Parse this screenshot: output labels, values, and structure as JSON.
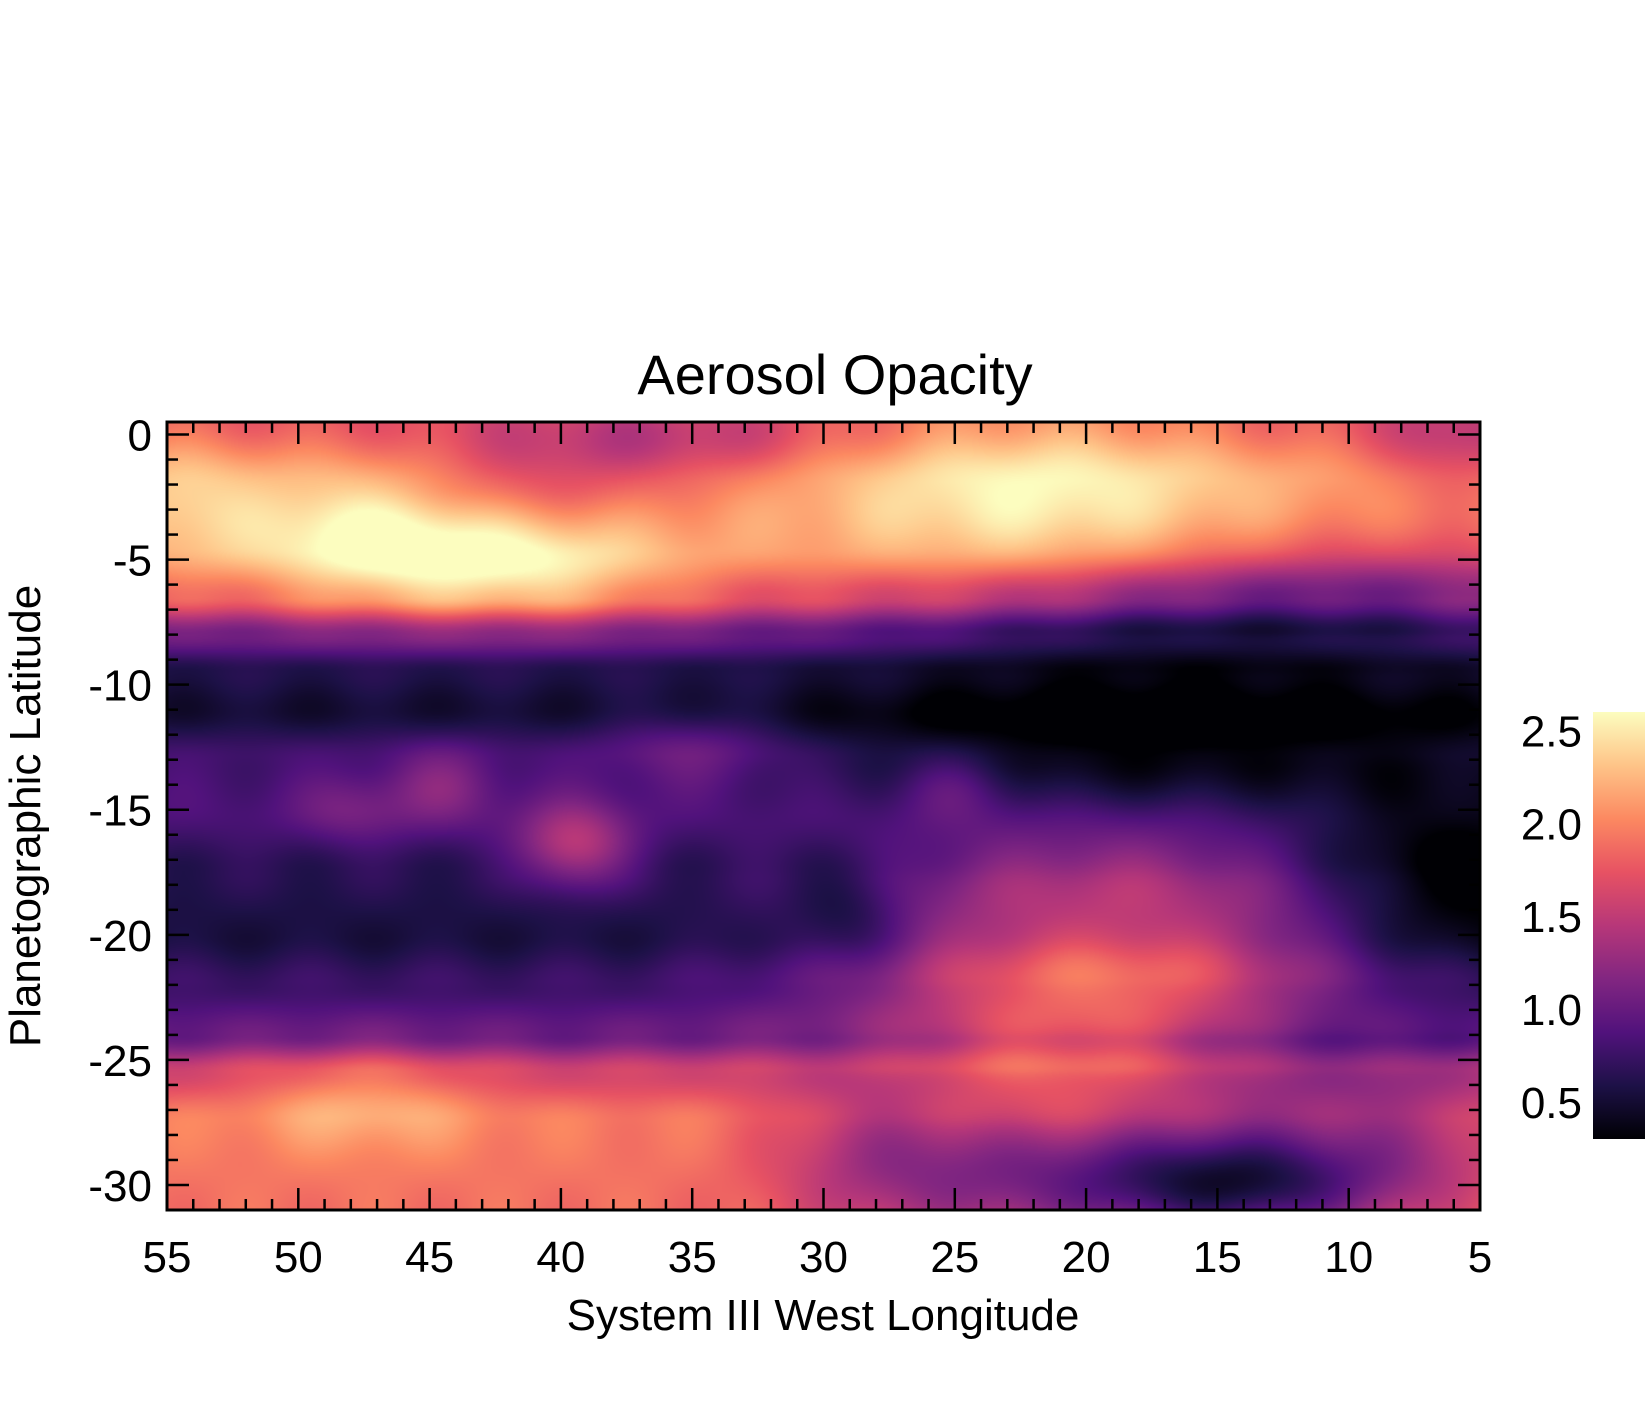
{
  "chart_data": {
    "type": "heatmap",
    "title": "Aerosol Opacity",
    "xlabel": "System III West Longitude",
    "ylabel": "Planetographic Latitude",
    "xlim": [
      55,
      5
    ],
    "ylim": [
      -31,
      0.5
    ],
    "x_ticks": [
      55,
      50,
      45,
      40,
      35,
      30,
      25,
      20,
      15,
      10,
      5
    ],
    "x_tick_labels": [
      "55",
      "50",
      "45",
      "40",
      "35",
      "30",
      "25",
      "20",
      "15",
      "10",
      "5"
    ],
    "y_ticks": [
      0,
      -5,
      -10,
      -15,
      -20,
      -25,
      -30
    ],
    "y_tick_labels": [
      "0",
      "-5",
      "-10",
      "-15",
      "-20",
      "-25",
      "-30"
    ],
    "colorbar": {
      "range": [
        0.3,
        2.6
      ],
      "ticks": [
        2.5,
        2.0,
        1.5,
        1.0,
        0.5
      ],
      "tick_labels": [
        "2.5",
        "2.0",
        "1.5",
        "1.0",
        "0.5"
      ],
      "colormap": "magma"
    },
    "field": {
      "baseline_rows": [
        {
          "lat": 0.5,
          "value": 1.75
        },
        {
          "lat": -2,
          "value": 2.05
        },
        {
          "lat": -4.5,
          "value": 2.05
        },
        {
          "lat": -6.5,
          "value": 1.75
        },
        {
          "lat": -8,
          "value": 1.05
        },
        {
          "lat": -9.5,
          "value": 0.6
        },
        {
          "lat": -11,
          "value": 0.5
        },
        {
          "lat": -13,
          "value": 0.8
        },
        {
          "lat": -15,
          "value": 0.85
        },
        {
          "lat": -17.5,
          "value": 0.65
        },
        {
          "lat": -20,
          "value": 0.55
        },
        {
          "lat": -22,
          "value": 0.75
        },
        {
          "lat": -24,
          "value": 1.0
        },
        {
          "lat": -25.5,
          "value": 1.6
        },
        {
          "lat": -27.5,
          "value": 1.95
        },
        {
          "lat": -31,
          "value": 1.9
        }
      ],
      "features": [
        {
          "lon": 47.5,
          "lat": -4,
          "dlon": 3.5,
          "dlat": 2,
          "amp": 0.6
        },
        {
          "lon": 41.5,
          "lat": -5.5,
          "dlon": 4,
          "dlat": 1.5,
          "amp": 0.6
        },
        {
          "lon": 22,
          "lat": -2,
          "dlon": 6,
          "dlat": 2.8,
          "amp": 0.55
        },
        {
          "lon": 54.5,
          "lat": -2.5,
          "dlon": 2,
          "dlat": 2,
          "amp": 0.3
        },
        {
          "lon": 42,
          "lat": -2,
          "dlon": 4,
          "dlat": 1.2,
          "amp": -0.3
        },
        {
          "lon": 36,
          "lat": -0.5,
          "dlon": 5,
          "dlat": 1.2,
          "amp": -0.35
        },
        {
          "lon": 6,
          "lat": -0.5,
          "dlon": 2,
          "dlat": 1.5,
          "amp": -0.35
        },
        {
          "lon": 8,
          "lat": -6,
          "dlon": 7,
          "dlat": 1.5,
          "amp": -0.45
        },
        {
          "lon": 17,
          "lat": -7,
          "dlon": 8,
          "dlat": 1.5,
          "amp": -0.5
        },
        {
          "lon": 39.5,
          "lat": -16.5,
          "dlon": 1.5,
          "dlat": 1.2,
          "amp": 0.75
        },
        {
          "lon": 44.5,
          "lat": -14,
          "dlon": 1.5,
          "dlat": 1.2,
          "amp": 0.35
        },
        {
          "lon": 48,
          "lat": -15,
          "dlon": 1.5,
          "dlat": 1,
          "amp": 0.25
        },
        {
          "lon": 35,
          "lat": -12.5,
          "dlon": 2.5,
          "dlat": 1.2,
          "amp": 0.3
        },
        {
          "lon": 25,
          "lat": -14,
          "dlon": 1.5,
          "dlat": 1,
          "amp": 0.3
        },
        {
          "lon": 18,
          "lat": -13,
          "dlon": 8,
          "dlat": 2.2,
          "amp": -0.55
        },
        {
          "lon": 6,
          "lat": -17,
          "dlon": 4,
          "dlat": 3,
          "amp": -0.5
        },
        {
          "lon": 19,
          "lat": -21,
          "dlon": 6.5,
          "dlat": 3.5,
          "amp": 1.3
        },
        {
          "lon": 19,
          "lat": -19.5,
          "dlon": 4,
          "dlat": 1,
          "amp": -0.2
        },
        {
          "lon": 13,
          "lat": -26,
          "dlon": 5,
          "dlat": 2.5,
          "amp": -0.6
        },
        {
          "lon": 14,
          "lat": -30,
          "dlon": 4,
          "dlat": 1.5,
          "amp": -1.1
        },
        {
          "lon": 22,
          "lat": -29.5,
          "dlon": 5,
          "dlat": 2,
          "amp": -0.7
        },
        {
          "lon": 28,
          "lat": -28,
          "dlon": 3,
          "dlat": 2.5,
          "amp": -0.4
        },
        {
          "lon": 7,
          "lat": -28.5,
          "dlon": 3,
          "dlat": 2,
          "amp": -0.3
        },
        {
          "lon": 47.5,
          "lat": -26.5,
          "dlon": 3,
          "dlat": 1.5,
          "amp": 0.35
        },
        {
          "lon": 29,
          "lat": -19,
          "dlon": 1.5,
          "dlat": 1.5,
          "amp": -0.3
        }
      ]
    }
  }
}
